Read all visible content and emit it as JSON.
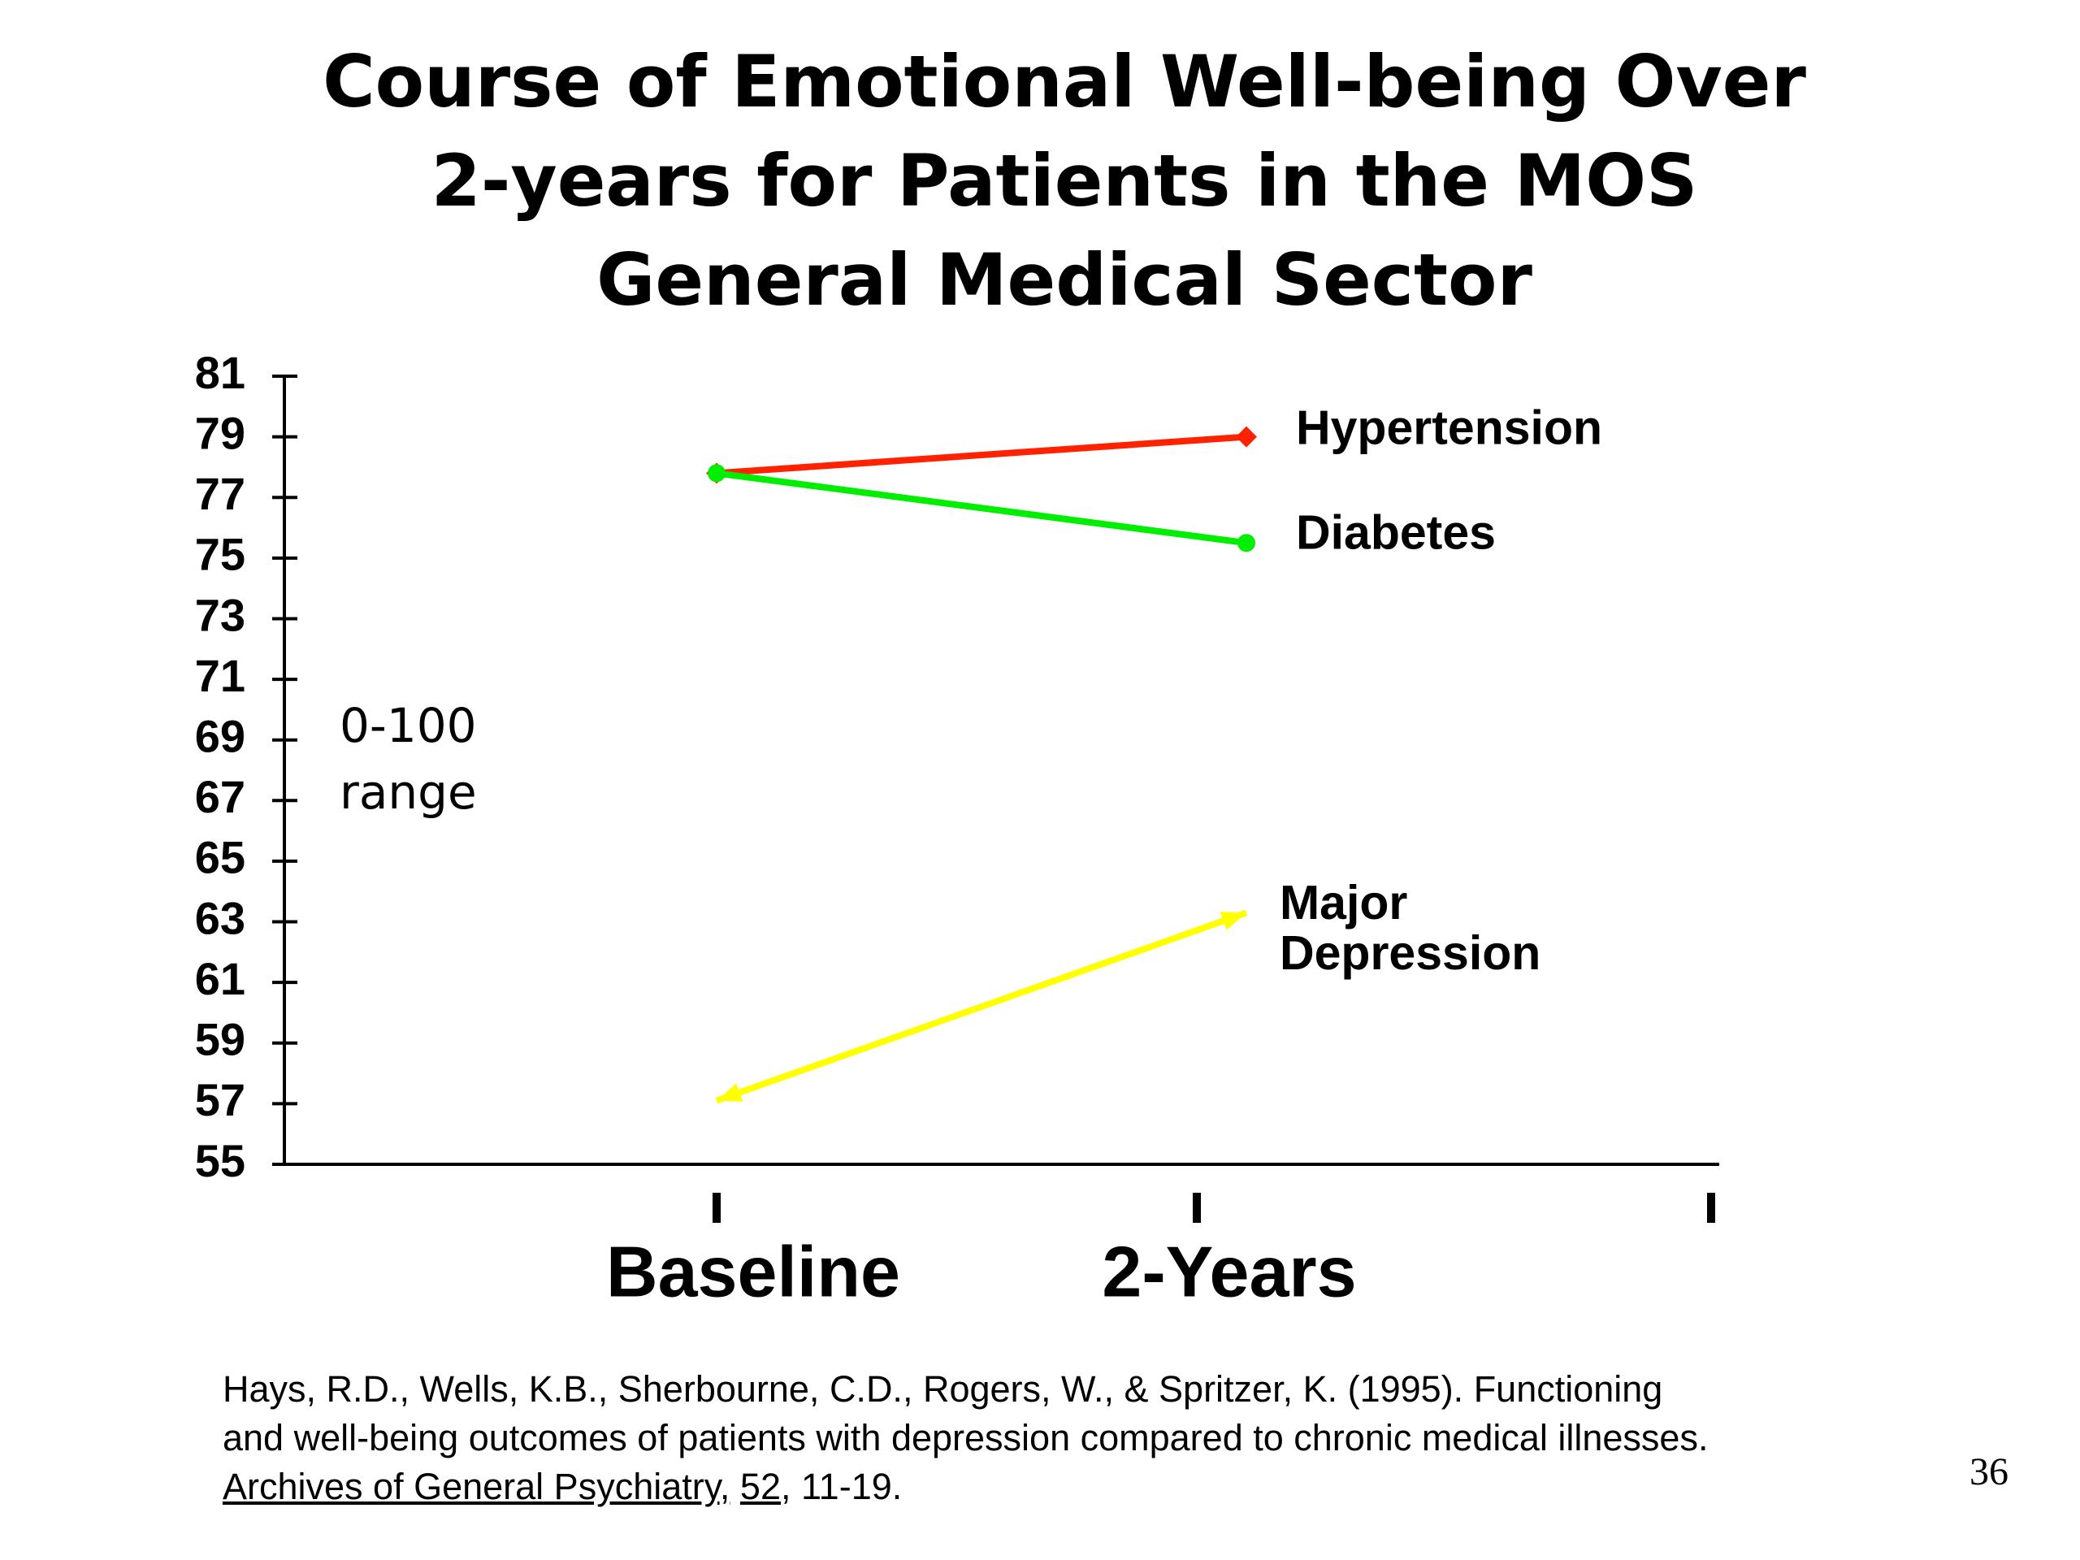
{
  "chart_data": {
    "type": "line",
    "title": "Course of Emotional Well-being Over\n2-years for Patients in the MOS\nGeneral Medical Sector",
    "categories": [
      "Baseline",
      "2-Years"
    ],
    "series": [
      {
        "name": "Hypertension",
        "color": "#ff2200",
        "marker": "diamond",
        "values": [
          77.8,
          79
        ]
      },
      {
        "name": "Diabetes",
        "color": "#00ee00",
        "marker": "circle",
        "values": [
          77.8,
          75.5
        ]
      },
      {
        "name": "Major Depression",
        "color": "#ffff00",
        "marker": "arrow",
        "values": [
          57.1,
          63.3
        ]
      }
    ],
    "ylim": [
      55,
      81
    ],
    "yticks": [
      55,
      57,
      59,
      61,
      63,
      65,
      67,
      69,
      71,
      73,
      75,
      77,
      79,
      81
    ],
    "annotation": "0-100\nrange"
  },
  "citation": {
    "text": "Hays, R.D., Wells, K.B., Sherbourne, C.D., Rogers, W., & Spritzer, K. (1995). Functioning\nand well-being outcomes of patients with depression compared to chronic medical illnesses.",
    "journal": "Archives of General Psychiatry,",
    "volume": "52",
    "pages": ", 11-19."
  },
  "page_number": "36"
}
